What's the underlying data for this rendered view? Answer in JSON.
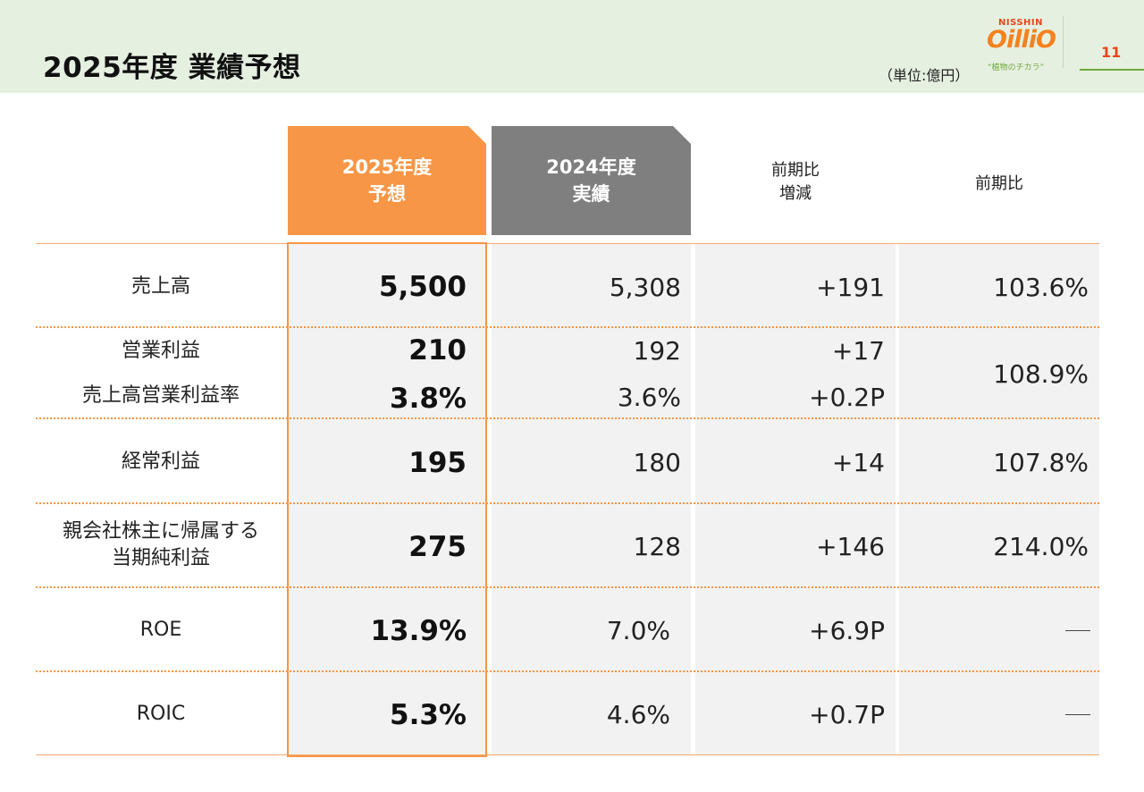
{
  "header": {
    "title": "2025年度 業績予想",
    "unit": "（単位:億円）",
    "page_number": "11",
    "logo": {
      "brand_top": "NISSHIN",
      "brand_main": "OilliO",
      "tagline": "“植物のチカラ”"
    }
  },
  "columns": {
    "forecast": {
      "line1": "2025年度",
      "line2": "予想"
    },
    "actual": {
      "line1": "2024年度",
      "line2": "実績"
    },
    "change": {
      "line1": "前期比",
      "line2": "増減"
    },
    "ratio": {
      "line1": "前期比"
    }
  },
  "rows": {
    "sales": {
      "label": "売上高",
      "forecast": "5,500",
      "actual": "5,308",
      "change": "+191",
      "ratio": "103.6%"
    },
    "op_income": {
      "label": "営業利益",
      "forecast": "210",
      "actual": "192",
      "change": "+17",
      "ratio": "108.9%"
    },
    "op_margin": {
      "label": "売上高営業利益率",
      "forecast": "3.8%",
      "actual": "3.6%",
      "change": "+0.2P"
    },
    "ordinary": {
      "label": "経常利益",
      "forecast": "195",
      "actual": "180",
      "change": "+14",
      "ratio": "107.8%"
    },
    "net_income": {
      "label_line1": "親会社株主に帰属する",
      "label_line2": "当期純利益",
      "forecast": "275",
      "actual": "128",
      "change": "+146",
      "ratio": "214.0%"
    },
    "roe": {
      "label": "ROE",
      "forecast": "13.9%",
      "actual": "7.0%",
      "change": "+6.9P"
    },
    "roic": {
      "label": "ROIC",
      "forecast": "5.3%",
      "actual": "4.6%",
      "change": "+0.7P"
    }
  },
  "colors": {
    "accent_orange": "#f79646",
    "gray_header": "#7f7f7f",
    "header_band": "#e6f0e1",
    "cell_bg": "#f2f2f2",
    "logo_green": "#6ca83a"
  }
}
